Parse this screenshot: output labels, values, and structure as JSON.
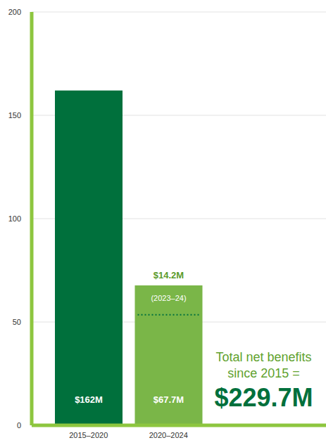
{
  "chart_data": {
    "type": "bar",
    "categories": [
      "2015–2020",
      "2020–2024"
    ],
    "values": [
      162,
      67.7
    ],
    "value_labels": [
      "$162M",
      "$67.7M"
    ],
    "colors": [
      "#00703c",
      "#7ab648"
    ],
    "ylim": [
      0,
      200
    ],
    "yticks": [
      0,
      50,
      100,
      150,
      200
    ],
    "grid": true,
    "data_labels": true,
    "annotations": [
      {
        "category": "2020–2024",
        "value": 14.2,
        "label": "$14.2M",
        "text": "(2023–24)"
      },
      {
        "text": "Total net benefits since 2015 =",
        "label": "$229.7M"
      }
    ]
  }
}
